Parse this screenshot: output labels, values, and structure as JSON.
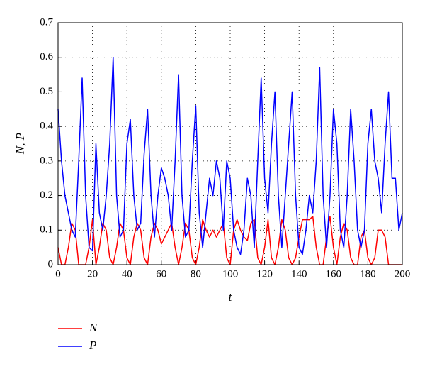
{
  "chart_data": {
    "type": "line",
    "x_label": "t",
    "y_label": "N, P",
    "x": [
      0,
      2,
      4,
      6,
      8,
      10,
      12,
      14,
      16,
      18,
      20,
      22,
      24,
      26,
      28,
      30,
      32,
      34,
      36,
      38,
      40,
      42,
      44,
      46,
      48,
      50,
      52,
      54,
      56,
      58,
      60,
      62,
      64,
      66,
      68,
      70,
      72,
      74,
      76,
      78,
      80,
      82,
      84,
      86,
      88,
      90,
      92,
      94,
      96,
      98,
      100,
      102,
      104,
      106,
      108,
      110,
      112,
      114,
      116,
      118,
      120,
      122,
      124,
      126,
      128,
      130,
      132,
      134,
      136,
      138,
      140,
      142,
      144,
      146,
      148,
      150,
      152,
      154,
      156,
      158,
      160,
      162,
      164,
      166,
      168,
      170,
      172,
      174,
      176,
      178,
      180,
      182,
      184,
      186,
      188,
      190,
      192,
      194,
      196,
      198,
      200
    ],
    "series": [
      {
        "name": "N",
        "color": "#ff0000",
        "values": [
          0.05,
          0,
          0,
          0.05,
          0.12,
          0.1,
          0,
          0,
          0,
          0.05,
          0.13,
          0,
          0.05,
          0.12,
          0.1,
          0.02,
          0,
          0.05,
          0.12,
          0.1,
          0.02,
          0,
          0.08,
          0.12,
          0.1,
          0.02,
          0,
          0.08,
          0.12,
          0.1,
          0.06,
          0.08,
          0.1,
          0.12,
          0.05,
          0,
          0.05,
          0.12,
          0.1,
          0.02,
          0,
          0.05,
          0.13,
          0.1,
          0.08,
          0.1,
          0.08,
          0.1,
          0.12,
          0.02,
          0,
          0.1,
          0.13,
          0.1,
          0.08,
          0.07,
          0.12,
          0.13,
          0.02,
          0,
          0.05,
          0.13,
          0.02,
          0,
          0.05,
          0.13,
          0.1,
          0.02,
          0,
          0.02,
          0.08,
          0.13,
          0.13,
          0.13,
          0.14,
          0.05,
          0,
          0,
          0.08,
          0.14,
          0.05,
          0,
          0.08,
          0.12,
          0.1,
          0.02,
          0,
          0,
          0.08,
          0.1,
          0.02,
          0,
          0.02,
          0.1,
          0.1,
          0.08,
          0,
          0,
          0,
          0,
          0
        ]
      },
      {
        "name": "P",
        "color": "#0000ff",
        "values": [
          0.45,
          0.3,
          0.2,
          0.15,
          0.1,
          0.08,
          0.3,
          0.54,
          0.2,
          0.05,
          0.04,
          0.35,
          0.15,
          0.1,
          0.2,
          0.35,
          0.6,
          0.2,
          0.08,
          0.1,
          0.35,
          0.42,
          0.2,
          0.1,
          0.12,
          0.32,
          0.45,
          0.2,
          0.08,
          0.2,
          0.28,
          0.25,
          0.2,
          0.1,
          0.3,
          0.55,
          0.2,
          0.08,
          0.1,
          0.3,
          0.46,
          0.15,
          0.05,
          0.15,
          0.25,
          0.2,
          0.3,
          0.25,
          0.1,
          0.3,
          0.25,
          0.1,
          0.05,
          0.03,
          0.1,
          0.25,
          0.2,
          0.05,
          0.3,
          0.54,
          0.25,
          0.15,
          0.35,
          0.5,
          0.2,
          0.05,
          0.2,
          0.35,
          0.5,
          0.2,
          0.05,
          0.03,
          0.1,
          0.2,
          0.15,
          0.3,
          0.57,
          0.2,
          0.05,
          0.2,
          0.45,
          0.35,
          0.1,
          0.05,
          0.2,
          0.45,
          0.3,
          0.1,
          0.05,
          0.1,
          0.35,
          0.45,
          0.3,
          0.25,
          0.15,
          0.35,
          0.5,
          0.25,
          0.25,
          0.1,
          0.15
        ]
      }
    ],
    "xlim": [
      0,
      200
    ],
    "xticks": [
      0,
      20,
      40,
      60,
      80,
      100,
      120,
      140,
      160,
      180,
      200
    ],
    "ylim": [
      0,
      0.7
    ],
    "yticks": [
      0,
      0.1,
      0.2,
      0.3,
      0.4,
      0.5,
      0.6,
      0.7
    ],
    "grid": true,
    "legend": "below"
  }
}
